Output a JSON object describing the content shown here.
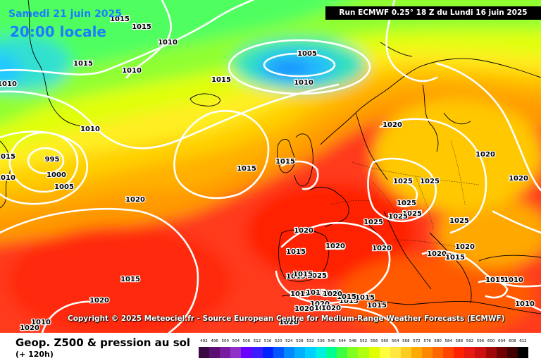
{
  "header": {
    "date": "Samedi 21 juin 2025",
    "time": "20:00 locale",
    "run": "Run ECMWF 0.25° 18 Z du Lundi 16 juin 2025"
  },
  "copyright": "Copyright © 2025 Meteociel.fr - Source European Centre for Medium-Range Weather Forecasts (ECMWF)",
  "footer": {
    "title": "Geop. Z500 & pression au sol",
    "subtitle": "(+ 120h)"
  },
  "scale": {
    "labels": [
      "492",
      "496",
      "500",
      "504",
      "508",
      "512",
      "516",
      "520",
      "524",
      "528",
      "532",
      "536",
      "540",
      "544",
      "548",
      "552",
      "556",
      "560",
      "564",
      "568",
      "572",
      "576",
      "580",
      "584",
      "588",
      "592",
      "596",
      "600",
      "604",
      "608",
      "612"
    ],
    "colors": [
      "#3b0a45",
      "#5a1070",
      "#7a1aa0",
      "#9030c8",
      "#6a00ff",
      "#3c1cff",
      "#0022ff",
      "#0055ff",
      "#0088ff",
      "#00b0ff",
      "#00d0ff",
      "#00f0e0",
      "#00ff90",
      "#40ff40",
      "#80ff20",
      "#b0ff10",
      "#e0ff00",
      "#ffff40",
      "#ffe640",
      "#ffcc20",
      "#ffaa00",
      "#ff8800",
      "#ff6600",
      "#ff4400",
      "#ff2200",
      "#e61a10",
      "#cc1010",
      "#a00808",
      "#700000",
      "#400000",
      "#000000"
    ]
  },
  "pressure_labels": [
    "1015",
    "1015",
    "1015",
    "1010",
    "1010",
    "1010",
    "1005",
    "1010",
    "1015",
    "1010",
    "1015",
    "1010",
    "995",
    "1000",
    "1005",
    "1020",
    "1015",
    "1015",
    "1020",
    "1025",
    "1025",
    "1020",
    "1025",
    "1025",
    "1025",
    "1025",
    "1020",
    "1015",
    "1020",
    "1020",
    "1015",
    "1020",
    "1015",
    "1015",
    "1015",
    "1020",
    "1015",
    "1015",
    "1015",
    "1015",
    "1025",
    "1020",
    "1020",
    "1020",
    "1015",
    "1015",
    "1010",
    "1010",
    "1020",
    "1015",
    "1010",
    "1020",
    "1020",
    "1020",
    "1020",
    "1020",
    "1025",
    "1020",
    "1020",
    "1015",
    "1015"
  ]
}
